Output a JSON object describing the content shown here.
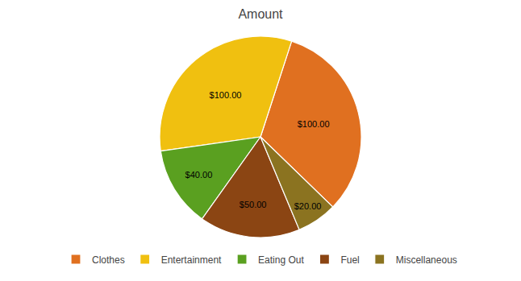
{
  "chart_data": {
    "type": "pie",
    "title": "Amount",
    "categories": [
      "Clothes",
      "Entertainment",
      "Eating Out",
      "Fuel",
      "Miscellaneous"
    ],
    "values": [
      100,
      100,
      40,
      50,
      20
    ],
    "value_labels": [
      "$100.00",
      "$100.00",
      "$40.00",
      "$50.00",
      "$20.00"
    ],
    "colors": [
      "#E07020",
      "#F0C010",
      "#5AA020",
      "#8B4513",
      "#8B7320"
    ],
    "data_labels": true,
    "legend": "bottom"
  }
}
